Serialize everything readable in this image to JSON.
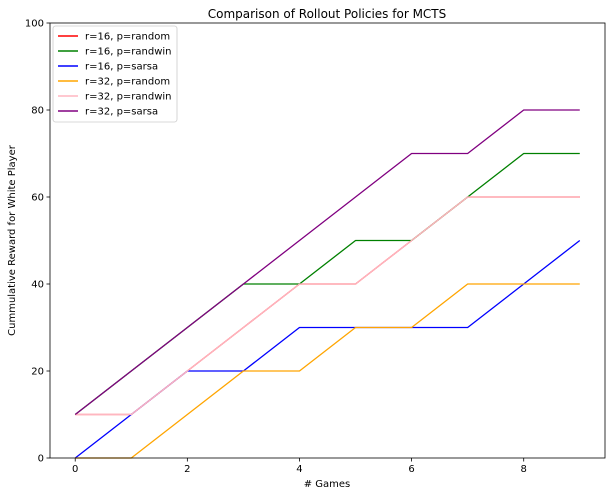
{
  "chart_data": {
    "type": "line",
    "title": "Comparison of Rollout Policies for MCTS",
    "xlabel": "# Games",
    "ylabel": "Cummulative Reward for White Player",
    "x": [
      0,
      1,
      2,
      3,
      4,
      5,
      6,
      7,
      8,
      9
    ],
    "xlim": [
      -0.45,
      9.45
    ],
    "ylim": [
      0,
      100
    ],
    "xticks": [
      0,
      2,
      4,
      6,
      8
    ],
    "yticks": [
      0,
      20,
      40,
      60,
      80,
      100
    ],
    "grid": false,
    "legend_position": "top-left",
    "series": [
      {
        "name": "r=16, p=random",
        "color": "#ff0000",
        "values": [
          10,
          10,
          20,
          30,
          40,
          40,
          50,
          60,
          60,
          60
        ]
      },
      {
        "name": "r=16, p=randwin",
        "color": "#008000",
        "values": [
          10,
          20,
          30,
          40,
          40,
          50,
          50,
          60,
          70,
          70
        ]
      },
      {
        "name": "r=16, p=sarsa",
        "color": "#0000ff",
        "values": [
          0,
          10,
          20,
          20,
          30,
          30,
          30,
          30,
          40,
          50
        ]
      },
      {
        "name": "r=32, p=random",
        "color": "#ffa500",
        "values": [
          0,
          0,
          10,
          20,
          20,
          30,
          30,
          40,
          40,
          40
        ]
      },
      {
        "name": "r=32, p=randwin",
        "color": "#ffb6c1",
        "values": [
          10,
          10,
          20,
          30,
          40,
          40,
          50,
          60,
          60,
          60
        ]
      },
      {
        "name": "r=32, p=sarsa",
        "color": "#800080",
        "values": [
          10,
          20,
          30,
          40,
          50,
          60,
          70,
          70,
          80,
          80
        ]
      }
    ]
  }
}
